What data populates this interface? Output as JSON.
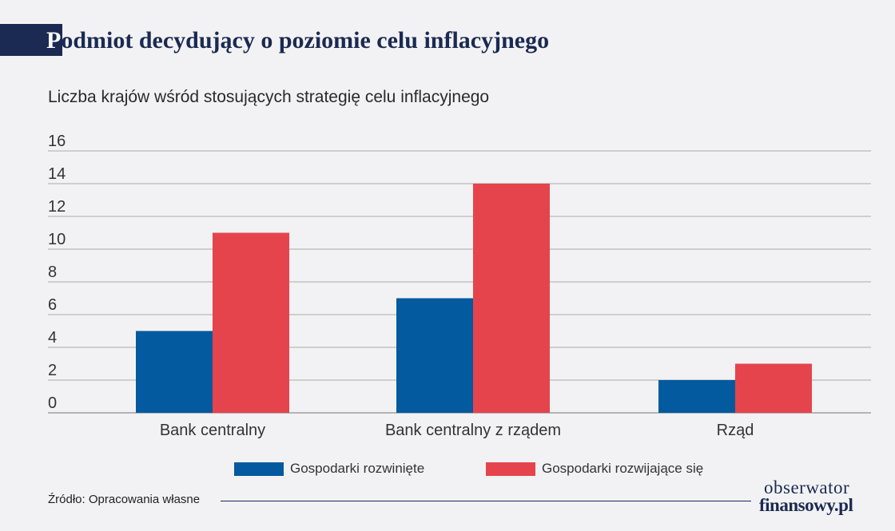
{
  "header": {
    "title_first": "P",
    "title_rest": "odmiot decydujący o poziomie celu inflacyjnego",
    "subtitle": "Liczba krajów wśród stosujących strategię celu inflacyjnego"
  },
  "chart_data": {
    "type": "bar",
    "categories": [
      "Bank centralny",
      "Bank centralny z rządem",
      "Rząd"
    ],
    "series": [
      {
        "name": "Gospodarki rozwinięte",
        "color": "#035a9e",
        "values": [
          5,
          7,
          2
        ]
      },
      {
        "name": "Gospodarki rozwijające się",
        "color": "#e5444c",
        "values": [
          11,
          14,
          3
        ]
      }
    ],
    "ylim": [
      0,
      16
    ],
    "yticks": [
      0,
      2,
      4,
      6,
      8,
      10,
      12,
      14,
      16
    ],
    "grid": true,
    "legend_position": "bottom"
  },
  "footer": {
    "source": "Źródło: Opracowania własne",
    "logo_line1": "obserwator",
    "logo_line2": "finansowy.pl"
  }
}
